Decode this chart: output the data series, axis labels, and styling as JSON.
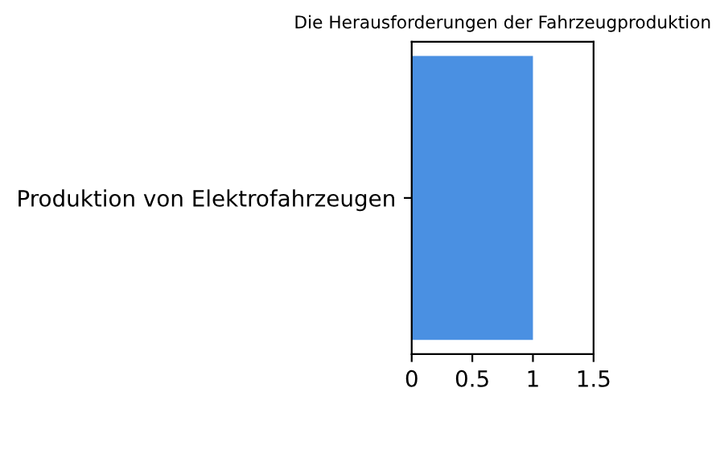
{
  "chart_data": {
    "type": "bar",
    "orientation": "horizontal",
    "title": "Die Herausforderungen der Fahrzeugproduktion",
    "categories": [
      "Produktion von Elektrofahrzeugen"
    ],
    "values": [
      1
    ],
    "color": "#4a90e2",
    "xlim": [
      0,
      1.5
    ],
    "xticks": [
      0,
      0.5,
      1,
      1.5
    ],
    "grid": false
  }
}
